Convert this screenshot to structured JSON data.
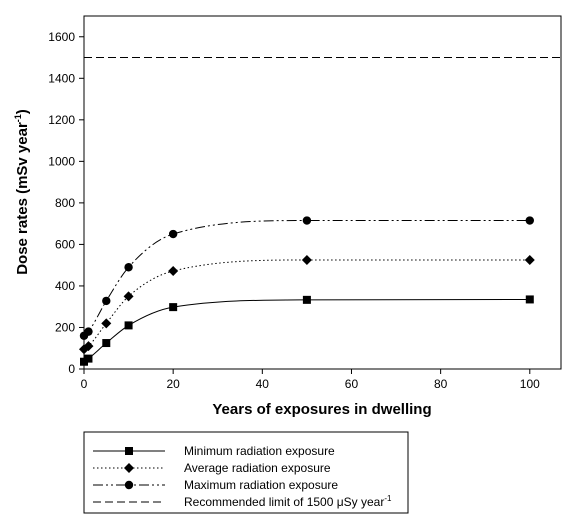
{
  "chart_data": {
    "type": "line",
    "xlabel": "Years of exposures in dwelling",
    "ylabel": "Dose rates (mSv year",
    "ylabel_sup": "-1",
    "ylabel_close": ")",
    "xlim": [
      0,
      107
    ],
    "ylim": [
      0,
      1700
    ],
    "xticks": [
      0,
      20,
      40,
      60,
      80,
      100
    ],
    "yticks": [
      0,
      200,
      400,
      600,
      800,
      1000,
      1200,
      1400,
      1600
    ],
    "series": [
      {
        "name": "Minimum radiation exposure",
        "marker": "square",
        "dash": "",
        "x": [
          0,
          1,
          5,
          10,
          20,
          50,
          100
        ],
        "y": [
          35,
          50,
          125,
          210,
          298,
          333,
          335
        ]
      },
      {
        "name": "Average radiation exposure",
        "marker": "diamond",
        "dash": "1.5,2.5",
        "x": [
          0,
          1,
          5,
          10,
          20,
          50,
          100
        ],
        "y": [
          95,
          110,
          220,
          350,
          472,
          525,
          525
        ]
      },
      {
        "name": "Maximum radiation exposure",
        "marker": "circle",
        "dash": "10,3,2,3,2,3",
        "x": [
          0,
          1,
          5,
          10,
          20,
          50,
          100
        ],
        "y": [
          160,
          180,
          328,
          490,
          650,
          715,
          715
        ]
      }
    ],
    "reference_line": {
      "name": "Recommended limit of 1500",
      "unit": "μSy year",
      "unit_sup": "-1",
      "y": 1500,
      "dash": "8,4"
    },
    "legend": {
      "placement": "bottom"
    },
    "grid": false
  }
}
